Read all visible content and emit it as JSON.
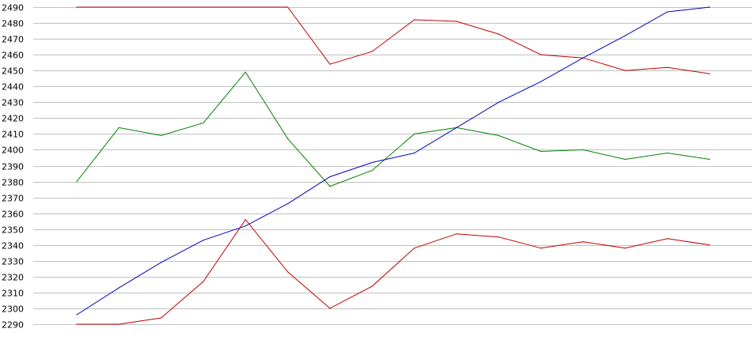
{
  "chart_data": {
    "type": "line",
    "title": "",
    "xlabel": "",
    "ylabel": "",
    "ylim": [
      2290,
      2490
    ],
    "y_ticks": [
      2290,
      2300,
      2310,
      2320,
      2330,
      2340,
      2350,
      2360,
      2370,
      2380,
      2390,
      2400,
      2410,
      2420,
      2430,
      2440,
      2450,
      2460,
      2470,
      2480,
      2490
    ],
    "x": [
      1,
      2,
      3,
      4,
      5,
      6,
      7,
      8,
      9,
      10,
      11,
      12,
      13,
      14,
      15,
      16
    ],
    "grid": true,
    "legend": "none",
    "series": [
      {
        "color": "#c00000",
        "values": [
          2490,
          2490,
          2490,
          2490,
          2490,
          2490,
          2454,
          2462,
          2482,
          2481,
          2473,
          2460,
          2458,
          2450,
          2452,
          2448
        ]
      },
      {
        "color": "#008000",
        "values": [
          2380,
          2414,
          2409,
          2417,
          2449,
          2407,
          2377,
          2387,
          2410,
          2414,
          2409,
          2399,
          2400,
          2394,
          2398,
          2394
        ]
      },
      {
        "color": "#0000c0",
        "values": [
          2296,
          2313,
          2329,
          2343,
          2352,
          2366,
          2383,
          2392,
          2398,
          2414,
          2430,
          2443,
          2458,
          2472,
          2487,
          2490
        ]
      },
      {
        "color": "#c00000",
        "values": [
          2290,
          2290,
          2294,
          2317,
          2356,
          2323,
          2300,
          2314,
          2338,
          2347,
          2345,
          2338,
          2342,
          2338,
          2344,
          2340
        ]
      }
    ]
  }
}
